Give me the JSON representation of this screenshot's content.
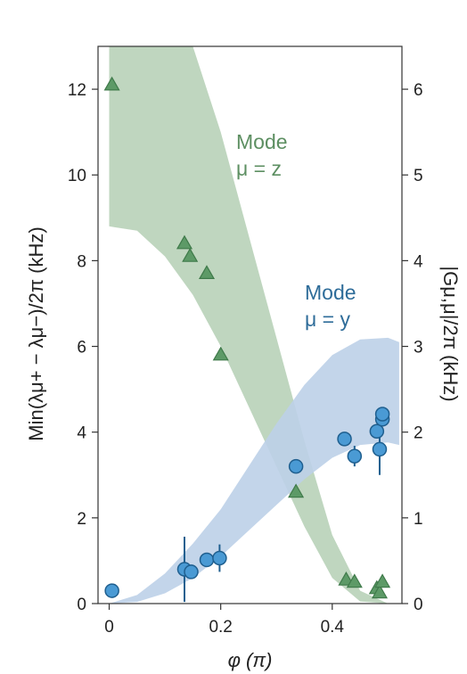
{
  "chart_data": {
    "type": "scatter",
    "xlabel": "φ (π)",
    "ylabel_left": "Min(λμ+ − λμ−)/2π (kHz)",
    "ylabel_right": "|Gμ,μ|/2π (kHz)",
    "xlim": [
      -0.02,
      0.525
    ],
    "ylim_left": [
      0,
      13.0
    ],
    "ylim_right": [
      0,
      6.5
    ],
    "x_ticks": [
      {
        "value": 0,
        "label": "0"
      },
      {
        "value": 0.2,
        "label": "0.2"
      },
      {
        "value": 0.4,
        "label": "0.4"
      }
    ],
    "y_left_ticks": [
      {
        "value": 0,
        "label": "0"
      },
      {
        "value": 2,
        "label": "2"
      },
      {
        "value": 4,
        "label": "4"
      },
      {
        "value": 6,
        "label": "6"
      },
      {
        "value": 8,
        "label": "8"
      },
      {
        "value": 10,
        "label": "10"
      },
      {
        "value": 12,
        "label": "12"
      }
    ],
    "y_right_ticks": [
      {
        "value": 0,
        "label": "0"
      },
      {
        "value": 1,
        "label": "1"
      },
      {
        "value": 2,
        "label": "2"
      },
      {
        "value": 3,
        "label": "3"
      },
      {
        "value": 4,
        "label": "4"
      },
      {
        "value": 5,
        "label": "5"
      },
      {
        "value": 6,
        "label": "6"
      }
    ],
    "colors": {
      "green_fill": "#b8d1b8",
      "green_marker": "#5d9a67",
      "green_edge": "#3f7a4a",
      "green_text": "#5d8f62",
      "blue_fill": "#bcd0e8",
      "blue_marker": "#4a9ad4",
      "blue_edge": "#1f5f8f",
      "blue_text": "#2e6c99"
    },
    "bands": [
      {
        "series": "mode-z",
        "x": [
          0.0,
          0.05,
          0.1,
          0.15,
          0.2,
          0.25,
          0.3,
          0.35,
          0.4,
          0.45,
          0.5
        ],
        "lower": [
          8.8,
          8.7,
          8.1,
          7.2,
          6.0,
          4.6,
          3.2,
          1.8,
          0.6,
          0.05,
          0.0
        ],
        "upper": [
          13.5,
          13.5,
          13.5,
          13.0,
          11.0,
          8.6,
          6.2,
          3.8,
          1.6,
          0.3,
          0.0
        ]
      },
      {
        "series": "mode-y",
        "x": [
          0.0,
          0.05,
          0.1,
          0.15,
          0.2,
          0.25,
          0.3,
          0.35,
          0.4,
          0.45,
          0.5,
          0.52
        ],
        "lower": [
          0.0,
          0.02,
          0.12,
          0.3,
          0.55,
          0.85,
          1.15,
          1.45,
          1.7,
          1.85,
          1.88,
          1.85
        ],
        "upper": [
          0.0,
          0.1,
          0.35,
          0.7,
          1.1,
          1.6,
          2.1,
          2.55,
          2.9,
          3.08,
          3.1,
          3.05
        ]
      }
    ],
    "series": [
      {
        "name": "Mode μ = z",
        "axis": "left",
        "marker": "triangle",
        "points": [
          {
            "x": 0.005,
            "y": 12.1
          },
          {
            "x": 0.135,
            "y": 8.4
          },
          {
            "x": 0.145,
            "y": 8.1
          },
          {
            "x": 0.175,
            "y": 7.7
          },
          {
            "x": 0.2,
            "y": 5.8
          },
          {
            "x": 0.335,
            "y": 2.6
          },
          {
            "x": 0.425,
            "y": 0.55
          },
          {
            "x": 0.44,
            "y": 0.5
          },
          {
            "x": 0.48,
            "y": 0.35
          },
          {
            "x": 0.485,
            "y": 0.25
          },
          {
            "x": 0.49,
            "y": 0.5
          }
        ]
      },
      {
        "name": "Mode μ = y",
        "axis": "right",
        "marker": "circle",
        "points": [
          {
            "x": 0.005,
            "y": 0.15,
            "err": 0.0
          },
          {
            "x": 0.135,
            "y": 0.4,
            "err": 0.38
          },
          {
            "x": 0.147,
            "y": 0.37,
            "err": 0.0
          },
          {
            "x": 0.175,
            "y": 0.51,
            "err": 0.0
          },
          {
            "x": 0.198,
            "y": 0.53,
            "err": 0.16
          },
          {
            "x": 0.335,
            "y": 1.6,
            "err": 0.0
          },
          {
            "x": 0.422,
            "y": 1.92,
            "err": 0.0
          },
          {
            "x": 0.44,
            "y": 1.72,
            "err": 0.12
          },
          {
            "x": 0.48,
            "y": 2.01,
            "err": 0.0
          },
          {
            "x": 0.485,
            "y": 1.8,
            "err": 0.3
          },
          {
            "x": 0.49,
            "y": 2.15,
            "err": 0.0
          },
          {
            "x": 0.49,
            "y": 2.21,
            "err": 0.0
          }
        ]
      }
    ],
    "annotations": [
      {
        "series": "mode-z",
        "line1": "Mode",
        "line2": "μ = z"
      },
      {
        "series": "mode-y",
        "line1": "Mode",
        "line2": "μ = y"
      }
    ]
  }
}
